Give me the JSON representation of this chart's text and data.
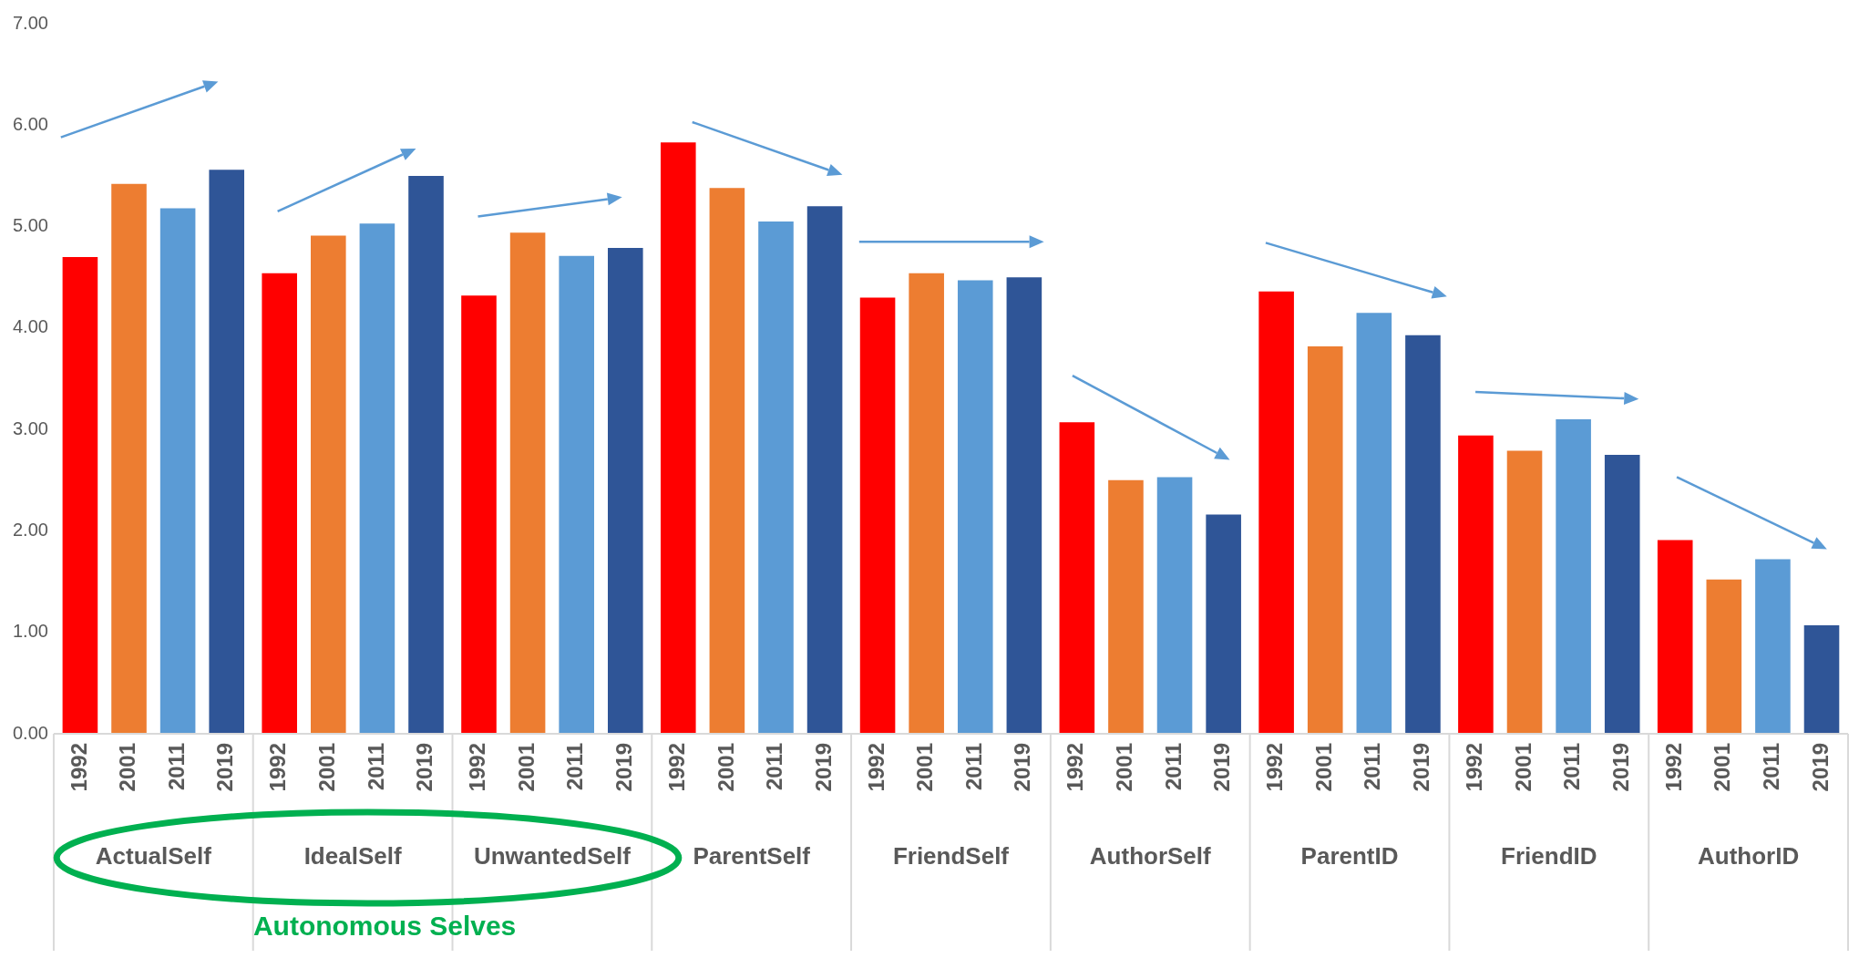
{
  "chart_data": {
    "type": "bar",
    "categories": [
      "ActualSelf",
      "IdealSelf",
      "UnwantedSelf",
      "ParentSelf",
      "FriendSelf",
      "AuthorSelf",
      "ParentID",
      "FriendID",
      "AuthorID"
    ],
    "series": [
      {
        "name": "1992",
        "color": "#ff0000",
        "values": [
          4.7,
          4.54,
          4.32,
          5.83,
          4.3,
          3.07,
          4.36,
          2.94,
          1.91
        ]
      },
      {
        "name": "2001",
        "color": "#ed7d31",
        "values": [
          5.42,
          4.91,
          4.94,
          5.38,
          4.54,
          2.5,
          3.82,
          2.79,
          1.52
        ]
      },
      {
        "name": "2011",
        "color": "#5b9bd5",
        "values": [
          5.18,
          5.03,
          4.71,
          5.05,
          4.47,
          2.53,
          4.15,
          3.1,
          1.72
        ]
      },
      {
        "name": "2019",
        "color": "#2f5597",
        "values": [
          5.56,
          5.5,
          4.79,
          5.2,
          4.5,
          2.16,
          3.93,
          2.75,
          1.07
        ]
      }
    ],
    "ylim": [
      0,
      7
    ],
    "yticks": [
      {
        "value": 0,
        "label": "0.00"
      },
      {
        "value": 1,
        "label": "1.00"
      },
      {
        "value": 2,
        "label": "2.00"
      },
      {
        "value": 3,
        "label": "3.00"
      },
      {
        "value": 4,
        "label": "4.00"
      },
      {
        "value": 5,
        "label": "5.00"
      },
      {
        "value": 6,
        "label": "6.00"
      },
      {
        "value": 7,
        "label": "7.00"
      }
    ],
    "legend": false,
    "annotations": [
      "Autonomous Selves"
    ]
  }
}
